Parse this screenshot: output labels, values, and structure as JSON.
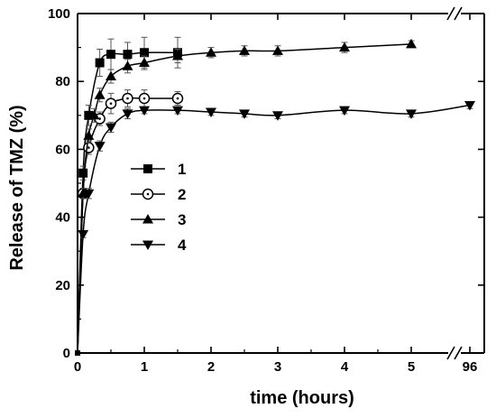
{
  "chart_data": {
    "type": "line",
    "xlabel": "time (hours)",
    "ylabel": "Release of TMZ (%)",
    "ylim": [
      0,
      100
    ],
    "xlim": [
      0,
      96
    ],
    "x_axis_break": {
      "after": 5,
      "resume": 96
    },
    "xticks": [
      0,
      1,
      2,
      3,
      4,
      5,
      96
    ],
    "yticks": [
      0,
      20,
      40,
      60,
      80,
      100
    ],
    "grid": false,
    "legend_position": "middle-left",
    "error_bars": true,
    "series": [
      {
        "name": "1",
        "marker": "filled-square",
        "x": [
          0,
          0.083,
          0.167,
          0.333,
          0.5,
          0.75,
          1,
          1.5
        ],
        "y": [
          0,
          53,
          70,
          85.5,
          88,
          88,
          88.5,
          88.5
        ],
        "err": [
          0,
          2,
          3,
          4,
          4.5,
          3.5,
          4.5,
          4.5
        ]
      },
      {
        "name": "2",
        "marker": "circle-dot",
        "x": [
          0,
          0.083,
          0.167,
          0.333,
          0.5,
          0.75,
          1,
          1.5
        ],
        "y": [
          0,
          47,
          60.5,
          69,
          73.5,
          75,
          75,
          75
        ],
        "err": [
          0,
          1.5,
          2,
          2,
          3,
          2.5,
          2.5,
          2
        ]
      },
      {
        "name": "3",
        "marker": "filled-triangle-up",
        "x": [
          0,
          0.083,
          0.167,
          0.25,
          0.333,
          0.5,
          0.75,
          1,
          1.5,
          2,
          2.5,
          3,
          4,
          5
        ],
        "y": [
          0,
          47,
          64,
          70,
          76,
          81.5,
          84.5,
          85.5,
          87.5,
          88.5,
          89,
          89,
          90,
          91
        ],
        "err": [
          0,
          1.5,
          2,
          2,
          2,
          2,
          2,
          2,
          2,
          1.5,
          1.5,
          1.5,
          1.5,
          1
        ]
      },
      {
        "name": "4",
        "marker": "filled-triangle-down",
        "x": [
          0,
          0.083,
          0.167,
          0.333,
          0.5,
          0.75,
          1,
          1.5,
          2,
          2.5,
          3,
          4,
          5,
          96
        ],
        "y": [
          0,
          35,
          47,
          61,
          66.5,
          70.5,
          71.5,
          71.5,
          71,
          70.5,
          70,
          71.5,
          70.5,
          73
        ],
        "err": [
          0,
          1,
          1.5,
          1.5,
          1.5,
          1.5,
          1,
          1,
          1,
          1,
          1,
          1,
          1,
          1
        ]
      }
    ]
  }
}
